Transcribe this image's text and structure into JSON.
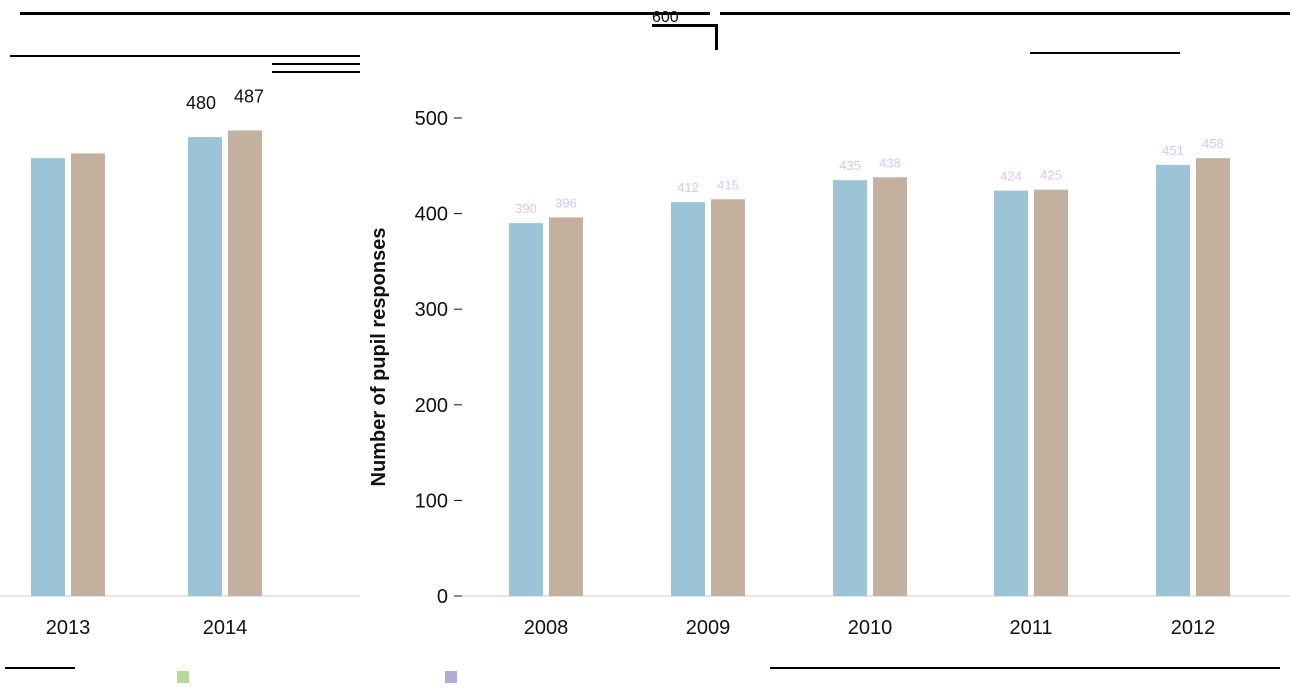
{
  "colors": {
    "background": "#ffffff",
    "series_a": "#9cc4d6",
    "series_b": "#c4b09f",
    "series_a_label": "#d8c6f0",
    "series_b_label": "#d8c6f0",
    "axis": "#111111",
    "rule": "#000000",
    "legend_green": "#b5d99a",
    "legend_purple": "#b7a8d6"
  },
  "top_labels": {
    "stub_600": "600"
  },
  "chart_data": [
    {
      "type": "bar",
      "title": "",
      "xlabel": "",
      "ylabel": "",
      "ylim": [
        0,
        500
      ],
      "categories": [
        "2013",
        "2014"
      ],
      "series": [
        {
          "values": [
            458,
            480
          ]
        },
        {
          "values": [
            463,
            487
          ]
        }
      ],
      "data_labels": [
        [
          "",
          "480"
        ],
        [
          "",
          "487"
        ]
      ],
      "grid": false,
      "legend": "none"
    },
    {
      "type": "bar",
      "title": "",
      "xlabel": "",
      "ylabel": "Number of pupil responses",
      "ylim": [
        0,
        500
      ],
      "yticks": [
        0,
        100,
        200,
        300,
        400,
        500
      ],
      "ytick_labels": [
        "0",
        "100",
        "200",
        "300",
        "400",
        "500"
      ],
      "categories": [
        "2008",
        "2009",
        "2010",
        "2011",
        "2012"
      ],
      "series": [
        {
          "values": [
            390,
            412,
            435,
            424,
            451
          ]
        },
        {
          "values": [
            396,
            415,
            438,
            425,
            458
          ]
        }
      ],
      "grid": false,
      "legend": "none"
    }
  ]
}
